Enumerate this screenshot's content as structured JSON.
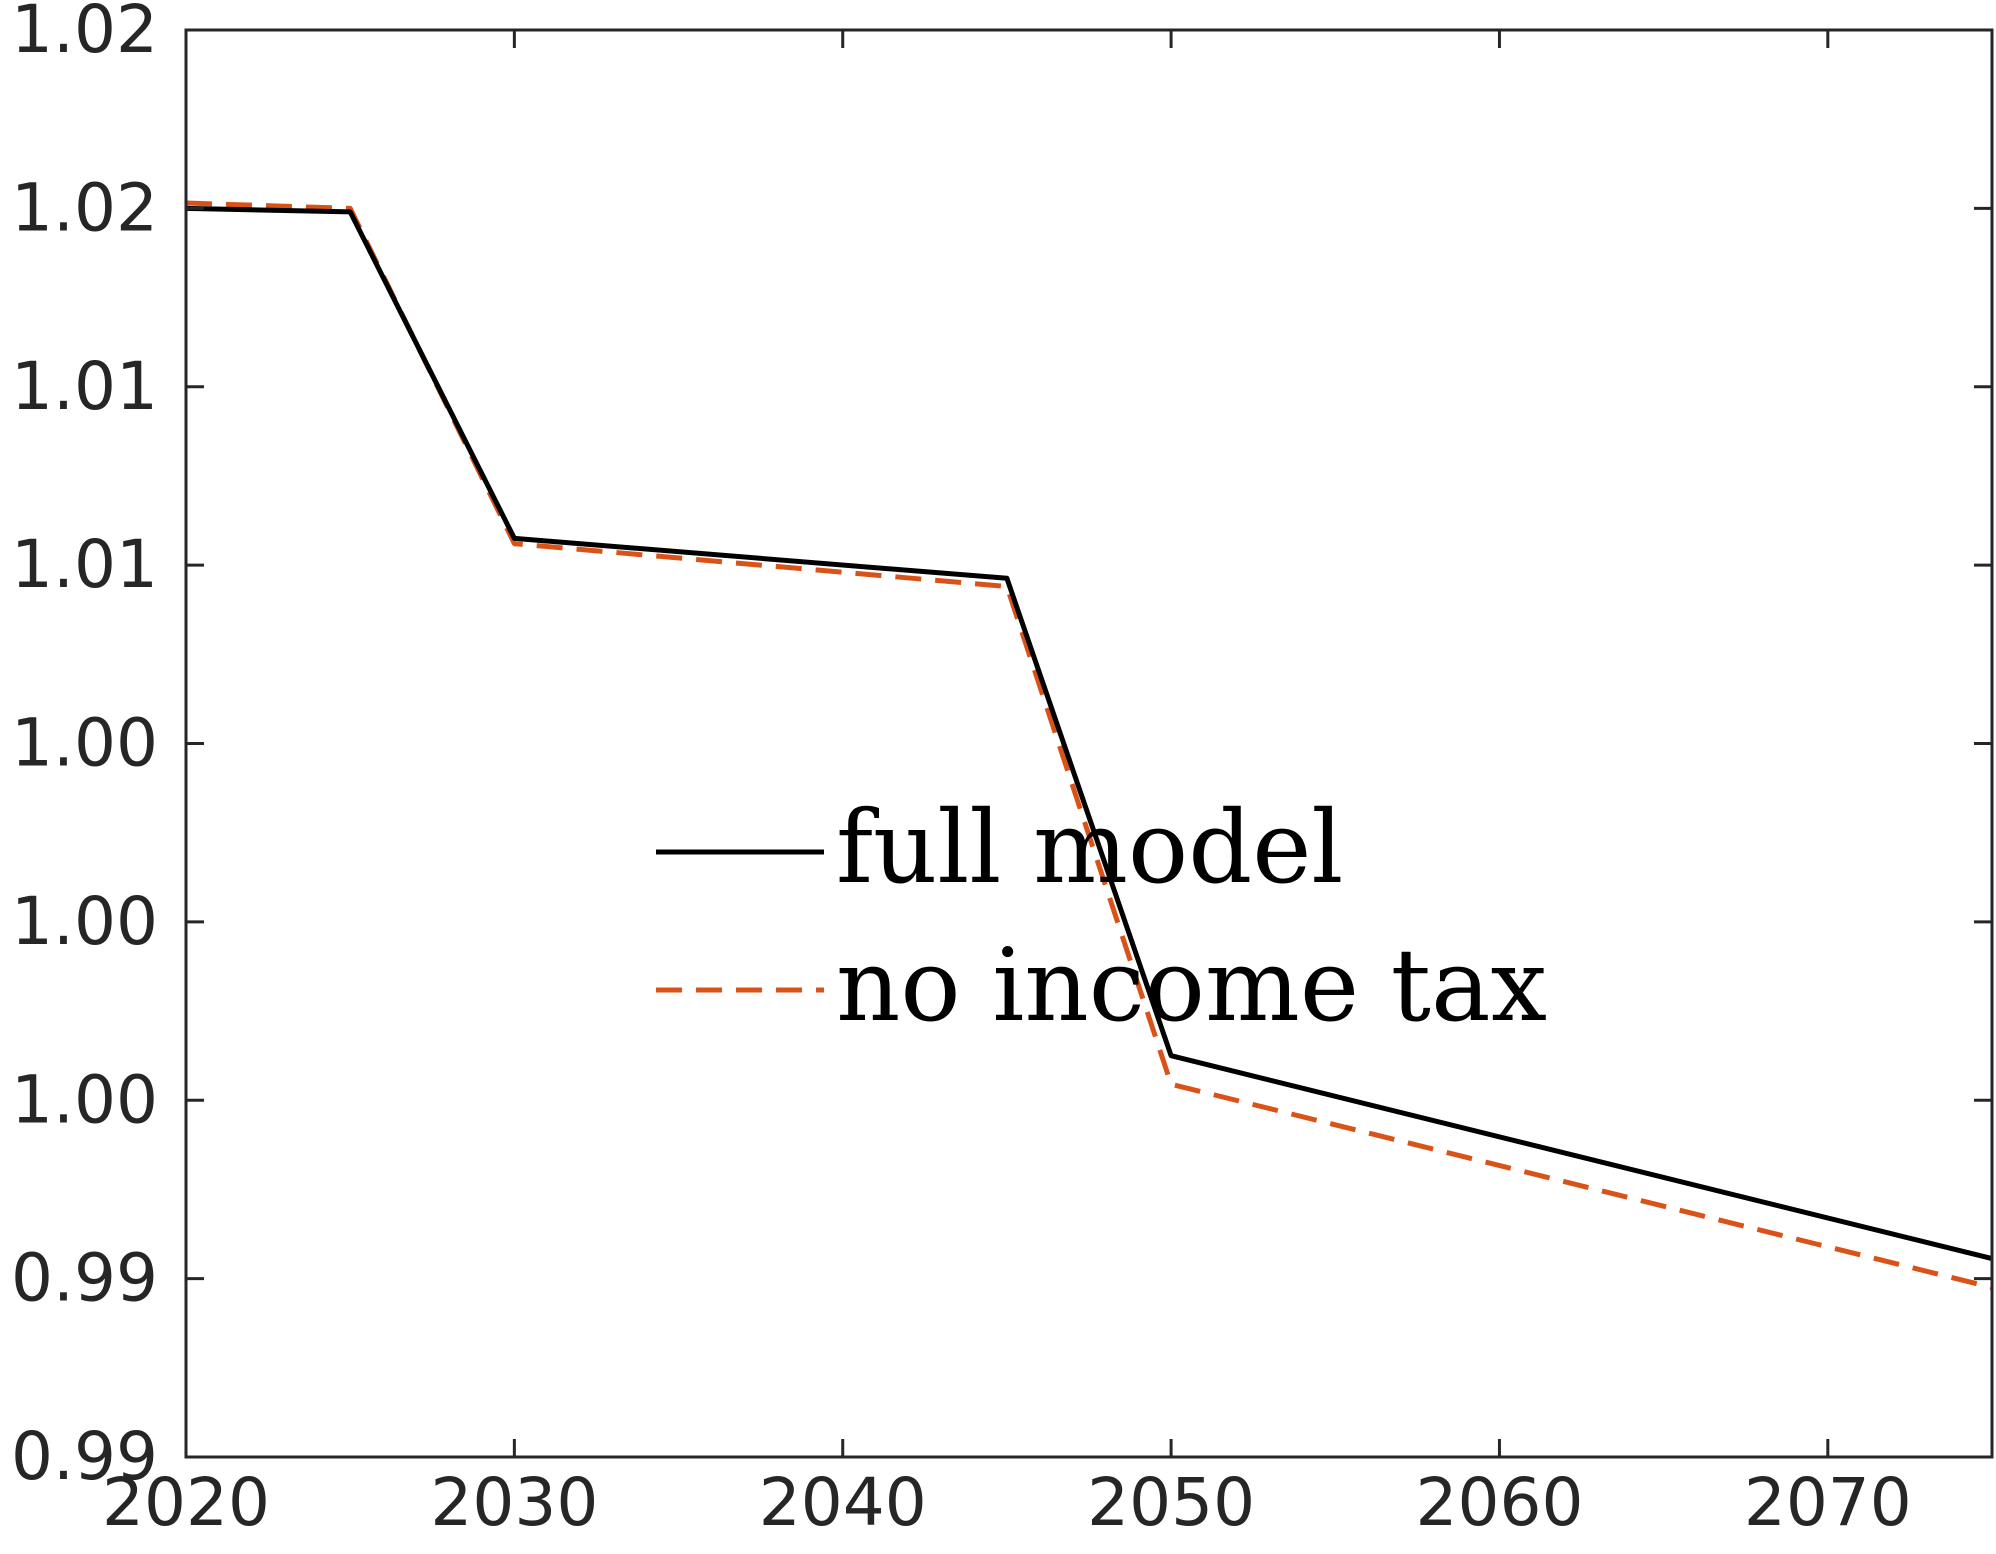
{
  "chart_data": {
    "type": "line",
    "title": "",
    "xlabel": "",
    "ylabel": "",
    "xlim": [
      2020,
      2075
    ],
    "ylim": [
      0.9875,
      1.0275
    ],
    "grid": false,
    "legend_placement": "center",
    "x_ticks": [
      2020,
      2030,
      2040,
      2050,
      2060,
      2070
    ],
    "x_tick_labels": [
      "2020",
      "2030",
      "2040",
      "2050",
      "2060",
      "2070"
    ],
    "y_ticks": [
      0.9875,
      0.9925,
      0.9975,
      1.0025,
      1.0075,
      1.0125,
      1.0175,
      1.0225,
      1.0275
    ],
    "y_tick_labels": [
      "0.99",
      "0.99",
      "1.00",
      "1.00",
      "1.00",
      "1.01",
      "1.01",
      "1.02",
      "1.02"
    ],
    "x": [
      2020,
      2025,
      2030,
      2045,
      2050,
      2075
    ],
    "series": [
      {
        "name": "full model",
        "color": "#000000",
        "style": "solid",
        "values": [
          1.0225,
          1.0224,
          1.01325,
          1.01213,
          0.99875,
          0.99306
        ]
      },
      {
        "name": "no income tax",
        "color": "#d95319",
        "style": "dashed",
        "values": [
          1.02265,
          1.0225,
          1.0131,
          1.0119,
          0.99795,
          0.99225
        ]
      }
    ]
  }
}
